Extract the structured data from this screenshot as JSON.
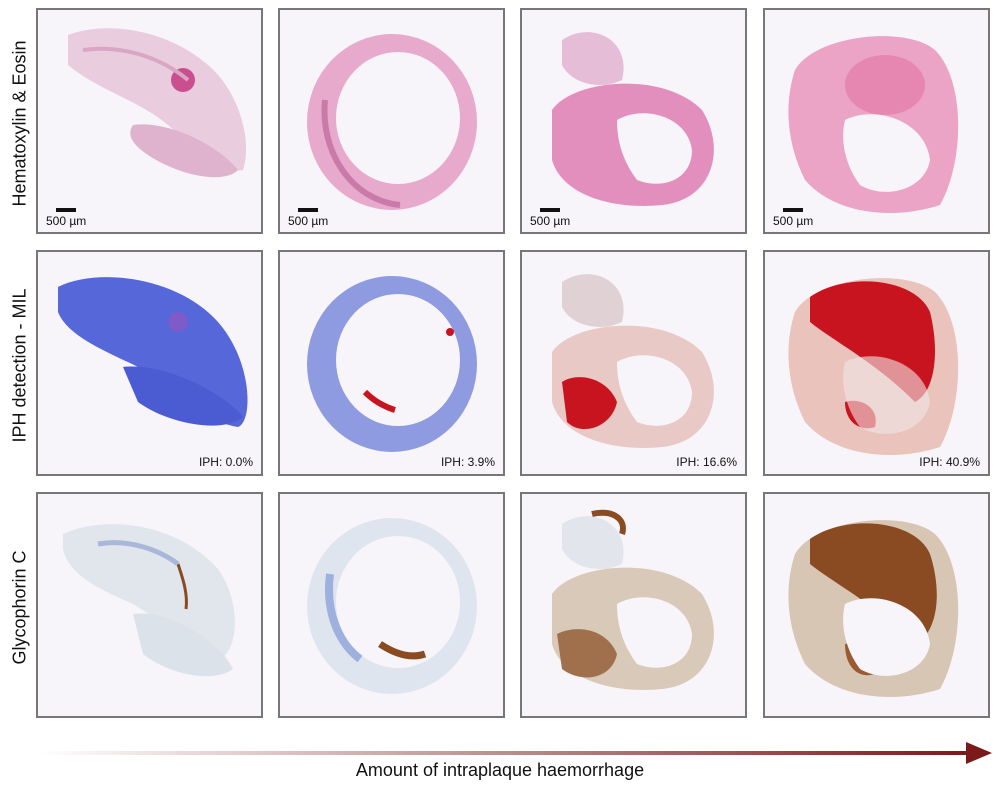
{
  "rows": [
    {
      "label": "Hematoxylin & Eosin"
    },
    {
      "label": "IPH detection -  MIL"
    },
    {
      "label": "Glycophorin C"
    }
  ],
  "scale_bar": "500 µm",
  "iph_values": [
    "IPH: 0.0%",
    "IPH: 3.9%",
    "IPH: 16.6%",
    "IPH: 40.9%"
  ],
  "x_axis_label": "Amount of intraplaque haemorrhage",
  "colors": {
    "he_fill": "#e8b7cf",
    "he_dark": "#c94f8f",
    "mil_low": "#4f63d8",
    "mil_mid": "#e8c9c6",
    "mil_high": "#c8141e",
    "gly_bg": "#dfe6ef",
    "gly_stain": "#8a4a22",
    "arrow": "#7a1a1a",
    "panel_border": "#777777"
  }
}
